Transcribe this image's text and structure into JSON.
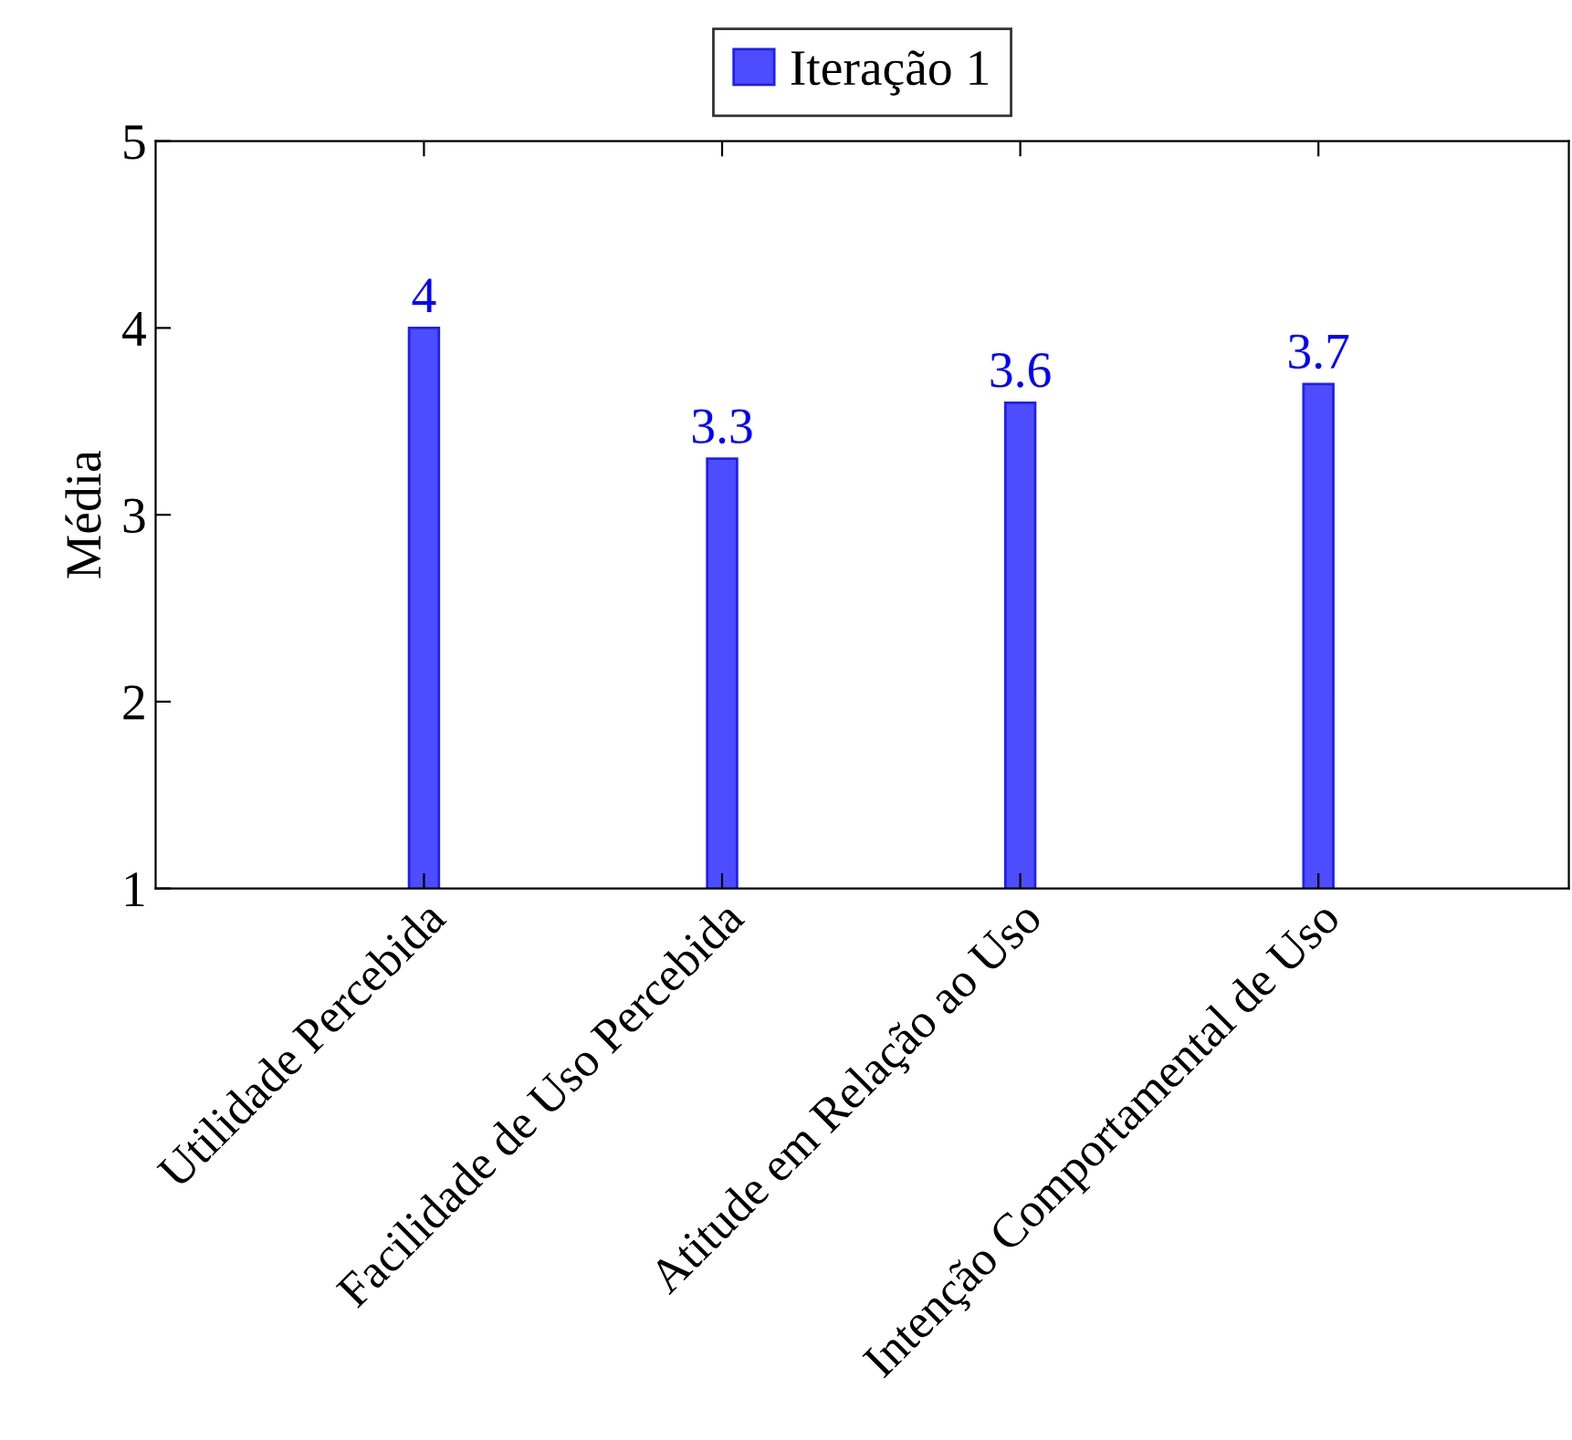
{
  "chart_data": {
    "type": "bar",
    "ylabel": "Média",
    "categories": [
      "Utilidade Percebida",
      "Facilidade de Uso Percebida",
      "Atitude em Relação ao Uso",
      "Intenção Comportamental de Uso"
    ],
    "series": [
      {
        "name": "Iteração 1",
        "color": "#4d4dff",
        "values": [
          4,
          3.3,
          3.6,
          3.7
        ]
      }
    ],
    "ylim": [
      1,
      5
    ],
    "yticks": [
      1,
      2,
      3,
      4,
      5
    ],
    "grid": false,
    "legend": "top",
    "data_labels": true
  }
}
